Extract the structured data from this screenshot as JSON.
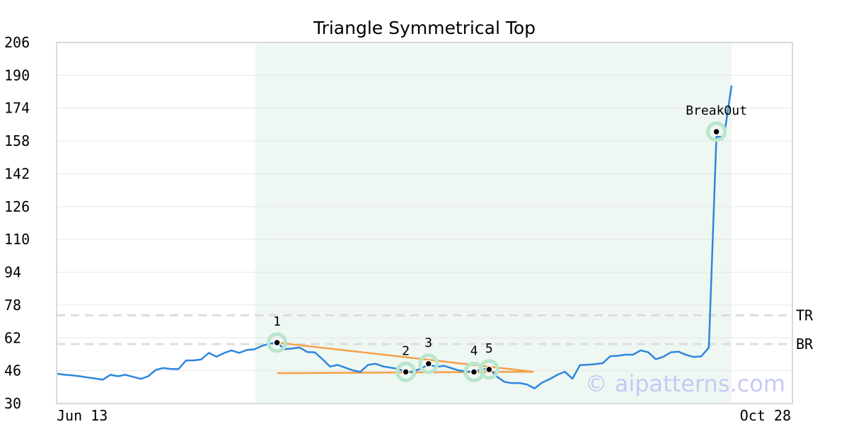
{
  "chart_data": {
    "type": "line",
    "title": "Triangle Symmetrical Top",
    "ylim": [
      30,
      206
    ],
    "yticks": [
      30,
      46,
      62,
      78,
      94,
      110,
      126,
      142,
      158,
      174,
      190,
      206
    ],
    "x_tick_labels": [
      "Jun 13",
      "Oct 28"
    ],
    "grid": "horizontal",
    "watermark": "© aipatterns.com",
    "colors": {
      "price": "#2e86de",
      "trendline": "#f5a04a",
      "highlight": "#eef7f2",
      "marker_halo": "#b9e6cd",
      "ref_line": "#dddddd"
    },
    "series": [
      {
        "values": [
          44.5,
          44.0,
          43.7,
          43.3,
          42.7,
          42.2,
          41.6,
          44.0,
          43.3,
          44.0,
          43.0,
          42.0,
          43.3,
          46.4,
          47.3,
          46.8,
          46.8,
          51.0,
          51.0,
          51.5,
          54.7,
          52.8,
          54.6,
          55.9,
          54.7,
          56.1,
          56.4,
          58.1,
          59.2,
          59.7,
          56.5,
          56.8,
          57.3,
          55.1,
          54.9,
          51.6,
          48.0,
          48.8,
          47.5,
          46.2,
          45.4,
          48.8,
          49.4,
          48.1,
          47.5,
          46.9,
          45.2,
          45.6,
          47.0,
          49.0,
          47.9,
          48.4,
          47.3,
          46.1,
          45.6,
          45.5,
          46.6,
          47.0,
          43.2,
          40.6,
          39.9,
          40.0,
          39.3,
          37.4,
          40.2,
          41.9,
          44.0,
          45.5,
          42.1,
          48.7,
          48.9,
          49.2,
          49.7,
          53.1,
          53.3,
          53.8,
          53.8,
          55.9,
          55.0,
          51.6,
          52.8,
          55.0,
          55.3,
          53.7,
          52.7,
          53.0,
          57.3,
          160.0,
          160.0,
          185.0
        ]
      }
    ],
    "highlight_range": [
      28,
      89
    ],
    "trendlines": [
      {
        "from": [
          29,
          59.7
        ],
        "to": [
          61,
          45.5
        ]
      },
      {
        "from": [
          29,
          44.8
        ],
        "to": [
          61,
          45.5
        ]
      }
    ],
    "reference_lines": [
      {
        "label": "TR",
        "y": 73
      },
      {
        "label": "BR",
        "y": 59
      }
    ],
    "points": [
      {
        "label": "1",
        "x": 29,
        "y": 59.7
      },
      {
        "label": "2",
        "x": 46,
        "y": 45.4
      },
      {
        "label": "3",
        "x": 49,
        "y": 49.4
      },
      {
        "label": "4",
        "x": 55,
        "y": 45.4
      },
      {
        "label": "5",
        "x": 57,
        "y": 46.6
      },
      {
        "label": "BreakOut",
        "x": 87,
        "y": 162.5
      }
    ]
  }
}
